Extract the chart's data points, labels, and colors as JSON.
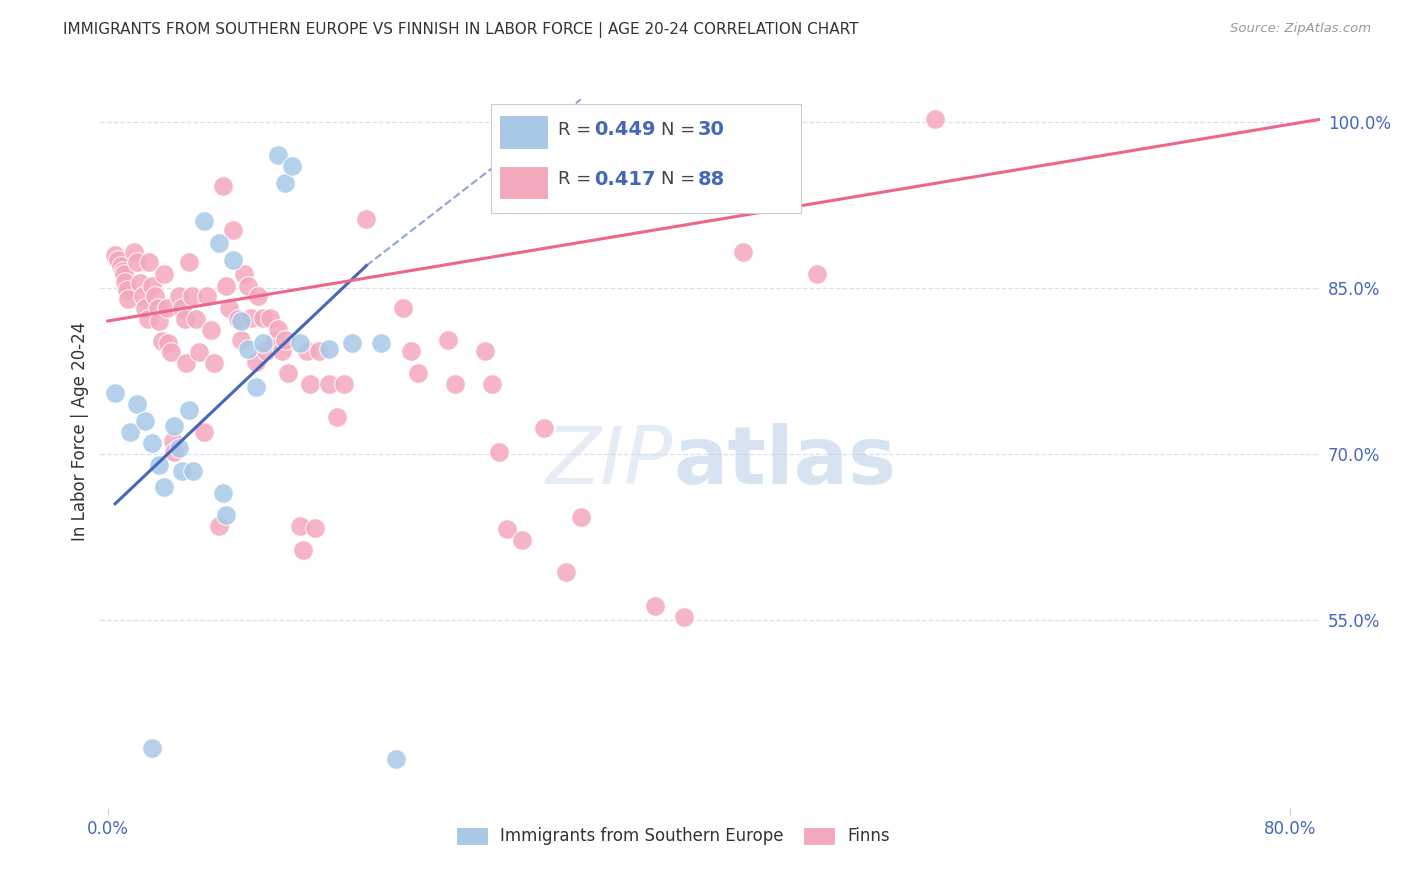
{
  "title": "IMMIGRANTS FROM SOUTHERN EUROPE VS FINNISH IN LABOR FORCE | AGE 20-24 CORRELATION CHART",
  "source": "Source: ZipAtlas.com",
  "ylabel": "In Labor Force | Age 20-24",
  "y_ticks_right": [
    0.55,
    0.7,
    0.85,
    1.0
  ],
  "y_tick_labels_right": [
    "55.0%",
    "70.0%",
    "85.0%",
    "100.0%"
  ],
  "xlim": [
    -0.005,
    0.82
  ],
  "ylim": [
    0.38,
    1.06
  ],
  "legend_label_blue": "Immigrants from Southern Europe",
  "legend_label_pink": "Finns",
  "blue_color": "#a8c8e8",
  "pink_color": "#f4a8bc",
  "blue_line_color": "#4466bb",
  "pink_line_color": "#ee6688",
  "legend_text_color": "#4466bb",
  "blue_scatter": [
    [
      0.005,
      0.755
    ],
    [
      0.015,
      0.72
    ],
    [
      0.02,
      0.745
    ],
    [
      0.025,
      0.73
    ],
    [
      0.03,
      0.71
    ],
    [
      0.035,
      0.69
    ],
    [
      0.038,
      0.67
    ],
    [
      0.045,
      0.725
    ],
    [
      0.048,
      0.705
    ],
    [
      0.05,
      0.685
    ],
    [
      0.055,
      0.74
    ],
    [
      0.058,
      0.685
    ],
    [
      0.065,
      0.91
    ],
    [
      0.075,
      0.89
    ],
    [
      0.078,
      0.665
    ],
    [
      0.08,
      0.645
    ],
    [
      0.085,
      0.875
    ],
    [
      0.09,
      0.82
    ],
    [
      0.095,
      0.795
    ],
    [
      0.1,
      0.76
    ],
    [
      0.105,
      0.8
    ],
    [
      0.115,
      0.97
    ],
    [
      0.12,
      0.945
    ],
    [
      0.125,
      0.96
    ],
    [
      0.13,
      0.8
    ],
    [
      0.15,
      0.795
    ],
    [
      0.165,
      0.8
    ],
    [
      0.185,
      0.8
    ],
    [
      0.03,
      0.435
    ],
    [
      0.195,
      0.425
    ]
  ],
  "pink_scatter": [
    [
      0.005,
      0.88
    ],
    [
      0.007,
      0.875
    ],
    [
      0.009,
      0.87
    ],
    [
      0.01,
      0.865
    ],
    [
      0.011,
      0.862
    ],
    [
      0.012,
      0.855
    ],
    [
      0.013,
      0.848
    ],
    [
      0.014,
      0.84
    ],
    [
      0.018,
      0.882
    ],
    [
      0.02,
      0.873
    ],
    [
      0.022,
      0.854
    ],
    [
      0.024,
      0.843
    ],
    [
      0.025,
      0.832
    ],
    [
      0.027,
      0.822
    ],
    [
      0.028,
      0.873
    ],
    [
      0.03,
      0.852
    ],
    [
      0.032,
      0.843
    ],
    [
      0.034,
      0.832
    ],
    [
      0.035,
      0.82
    ],
    [
      0.037,
      0.802
    ],
    [
      0.038,
      0.862
    ],
    [
      0.04,
      0.832
    ],
    [
      0.041,
      0.8
    ],
    [
      0.043,
      0.792
    ],
    [
      0.044,
      0.712
    ],
    [
      0.045,
      0.702
    ],
    [
      0.048,
      0.843
    ],
    [
      0.05,
      0.832
    ],
    [
      0.052,
      0.822
    ],
    [
      0.053,
      0.782
    ],
    [
      0.055,
      0.873
    ],
    [
      0.057,
      0.843
    ],
    [
      0.06,
      0.822
    ],
    [
      0.062,
      0.792
    ],
    [
      0.065,
      0.72
    ],
    [
      0.067,
      0.843
    ],
    [
      0.07,
      0.812
    ],
    [
      0.072,
      0.782
    ],
    [
      0.075,
      0.635
    ],
    [
      0.078,
      0.942
    ],
    [
      0.08,
      0.852
    ],
    [
      0.082,
      0.832
    ],
    [
      0.085,
      0.902
    ],
    [
      0.088,
      0.822
    ],
    [
      0.09,
      0.803
    ],
    [
      0.092,
      0.862
    ],
    [
      0.095,
      0.852
    ],
    [
      0.097,
      0.823
    ],
    [
      0.1,
      0.783
    ],
    [
      0.102,
      0.843
    ],
    [
      0.105,
      0.823
    ],
    [
      0.107,
      0.793
    ],
    [
      0.11,
      0.823
    ],
    [
      0.113,
      0.803
    ],
    [
      0.115,
      0.813
    ],
    [
      0.118,
      0.793
    ],
    [
      0.12,
      0.803
    ],
    [
      0.122,
      0.773
    ],
    [
      0.13,
      0.635
    ],
    [
      0.132,
      0.613
    ],
    [
      0.135,
      0.793
    ],
    [
      0.137,
      0.763
    ],
    [
      0.14,
      0.633
    ],
    [
      0.143,
      0.793
    ],
    [
      0.15,
      0.763
    ],
    [
      0.155,
      0.733
    ],
    [
      0.16,
      0.763
    ],
    [
      0.175,
      0.912
    ],
    [
      0.2,
      0.832
    ],
    [
      0.205,
      0.793
    ],
    [
      0.21,
      0.773
    ],
    [
      0.23,
      0.803
    ],
    [
      0.235,
      0.763
    ],
    [
      0.255,
      0.793
    ],
    [
      0.26,
      0.763
    ],
    [
      0.265,
      0.702
    ],
    [
      0.27,
      0.632
    ],
    [
      0.28,
      0.622
    ],
    [
      0.29,
      0.932
    ],
    [
      0.295,
      0.723
    ],
    [
      0.31,
      0.593
    ],
    [
      0.32,
      0.643
    ],
    [
      0.37,
      0.563
    ],
    [
      0.39,
      0.553
    ],
    [
      0.42,
      0.932
    ],
    [
      0.43,
      0.882
    ],
    [
      0.48,
      0.862
    ],
    [
      0.56,
      1.002
    ]
  ],
  "blue_trendline_solid": [
    0.005,
    0.655,
    0.175,
    0.87
  ],
  "blue_trendline_dashed": [
    0.175,
    0.87,
    0.32,
    1.02
  ],
  "pink_trendline": [
    0.0,
    0.82,
    0.82,
    1.002
  ],
  "watermark_zip": "ZIP",
  "watermark_atlas": "atlas",
  "grid_color": "#ddddee",
  "title_color": "#333333",
  "axis_label_color": "#333333",
  "right_tick_color": "#4466bb",
  "bottom_tick_color": "#4466bb"
}
